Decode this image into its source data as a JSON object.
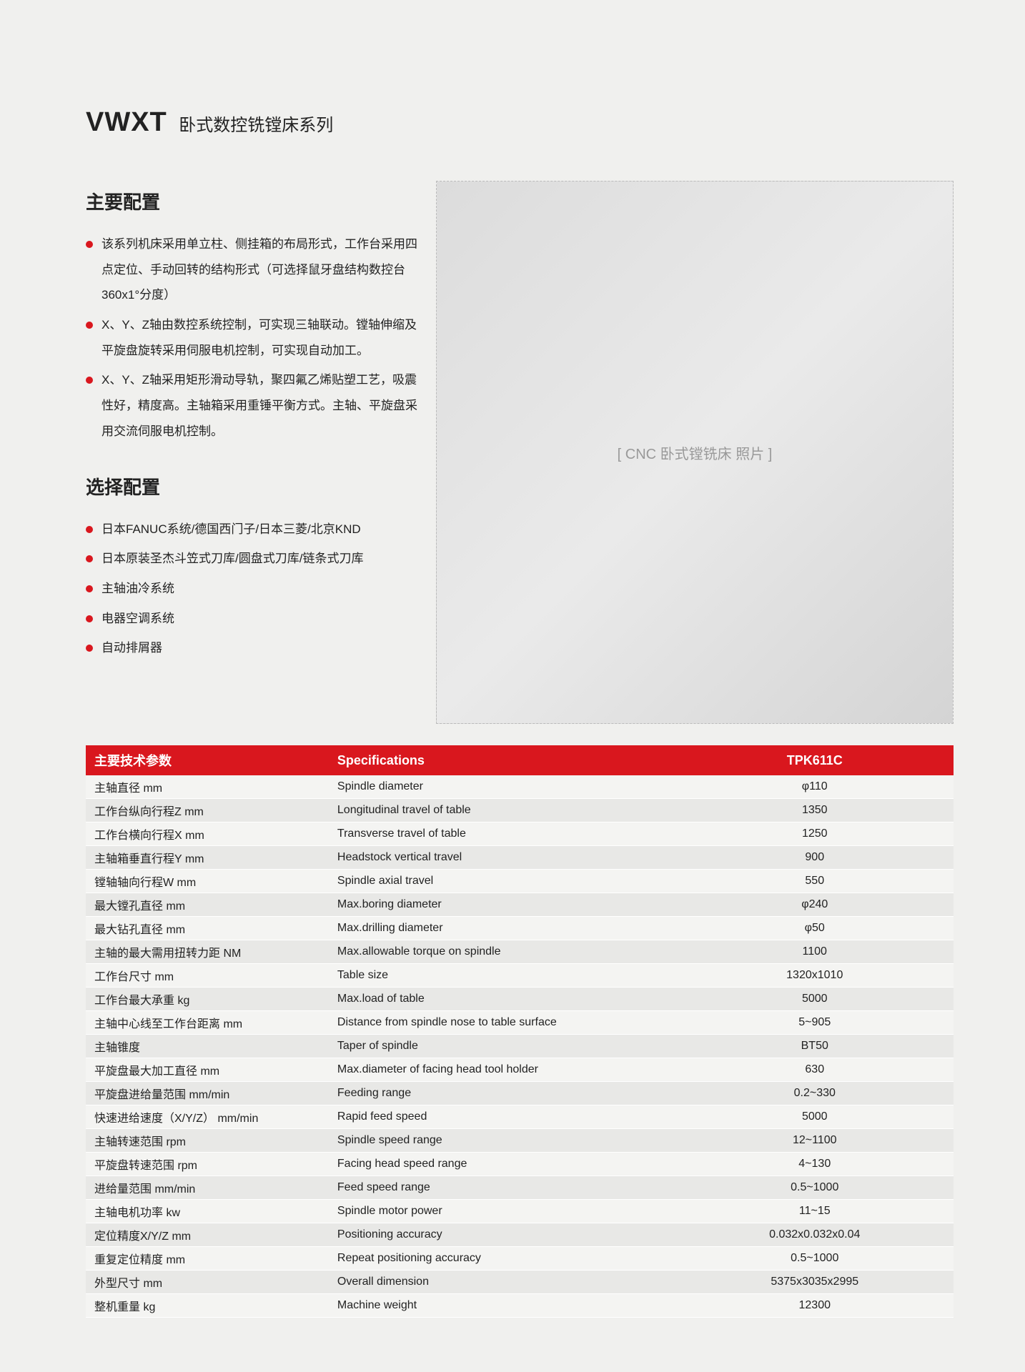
{
  "title": {
    "main": "VWXT",
    "sub": "卧式数控铣镗床系列"
  },
  "main_config": {
    "heading": "主要配置",
    "items": [
      "该系列机床采用单立柱、侧挂箱的布局形式，工作台采用四点定位、手动回转的结构形式（可选择鼠牙盘结构数控台360x1°分度）",
      "X、Y、Z轴由数控系统控制，可实现三轴联动。镗轴伸缩及平旋盘旋转采用伺服电机控制，可实现自动加工。",
      "X、Y、Z轴采用矩形滑动导轨，聚四氟乙烯贴塑工艺，吸震性好，精度高。主轴箱采用重锤平衡方式。主轴、平旋盘采用交流伺服电机控制。"
    ]
  },
  "option_config": {
    "heading": "选择配置",
    "items": [
      "日本FANUC系统/德国西门子/日本三菱/北京KND",
      "日本原装圣杰斗笠式刀库/圆盘式刀库/链条式刀库",
      "主轴油冷系统",
      "电器空调系统",
      "自动排屑器"
    ]
  },
  "image_label": "[ CNC 卧式镗铣床 照片 ]",
  "specs": {
    "header_cn": "主要技术参数",
    "header_en": "Specifications",
    "model": "TPK611C",
    "rows": [
      {
        "cn": "主轴直径  mm",
        "en": "Spindle diameter",
        "val": "φ110"
      },
      {
        "cn": "工作台纵向行程Z  mm",
        "en": "Longitudinal travel of table",
        "val": "1350"
      },
      {
        "cn": "工作台横向行程X  mm",
        "en": "Transverse travel of table",
        "val": "1250"
      },
      {
        "cn": "主轴箱垂直行程Y  mm",
        "en": "Headstock vertical travel",
        "val": "900"
      },
      {
        "cn": "镗轴轴向行程W  mm",
        "en": "Spindle axial travel",
        "val": "550"
      },
      {
        "cn": "最大镗孔直径  mm",
        "en": "Max.boring diameter",
        "val": "φ240"
      },
      {
        "cn": "最大钻孔直径  mm",
        "en": "Max.drilling diameter",
        "val": "φ50"
      },
      {
        "cn": "主轴的最大需用扭转力距  NM",
        "en": "Max.allowable torque on spindle",
        "val": "1100"
      },
      {
        "cn": "工作台尺寸  mm",
        "en": "Table size",
        "val": "1320x1010"
      },
      {
        "cn": "工作台最大承重  kg",
        "en": "Max.load of table",
        "val": "5000"
      },
      {
        "cn": "主轴中心线至工作台距离  mm",
        "en": "Distance from spindle nose to table surface",
        "val": "5~905"
      },
      {
        "cn": "主轴锥度",
        "en": "Taper of spindle",
        "val": "BT50"
      },
      {
        "cn": "平旋盘最大加工直径  mm",
        "en": "Max.diameter of facing head tool holder",
        "val": "630"
      },
      {
        "cn": "平旋盘进给量范围  mm/min",
        "en": "Feeding range",
        "val": "0.2~330"
      },
      {
        "cn": "快速进给速度（X/Y/Z）  mm/min",
        "en": "Rapid feed speed",
        "val": "5000"
      },
      {
        "cn": "主轴转速范围  rpm",
        "en": "Spindle speed range",
        "val": "12~1100"
      },
      {
        "cn": "平旋盘转速范围  rpm",
        "en": "Facing head speed range",
        "val": "4~130"
      },
      {
        "cn": "进给量范围  mm/min",
        "en": "Feed speed range",
        "val": "0.5~1000"
      },
      {
        "cn": "主轴电机功率  kw",
        "en": "Spindle motor power",
        "val": "11~15"
      },
      {
        "cn": "定位精度X/Y/Z  mm",
        "en": "Positioning accuracy",
        "val": "0.032x0.032x0.04"
      },
      {
        "cn": "重复定位精度  mm",
        "en": "Repeat positioning accuracy",
        "val": "0.5~1000"
      },
      {
        "cn": "外型尺寸  mm",
        "en": "Overall dimension",
        "val": "5375x3035x2995"
      },
      {
        "cn": "整机重量  kg",
        "en": "Machine weight",
        "val": "12300"
      }
    ]
  },
  "colors": {
    "accent": "#d9171e",
    "page_bg": "#f0f0ee",
    "row_even": "#e8e8e6",
    "row_odd": "#f4f4f2"
  }
}
